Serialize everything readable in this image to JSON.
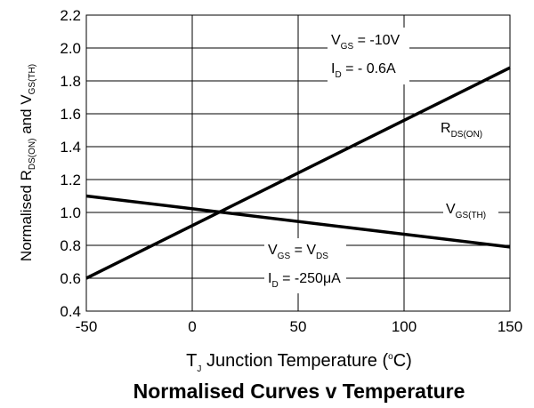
{
  "chart_data": {
    "type": "line",
    "title": "Normalised Curves v Temperature",
    "xlabel": {
      "main": "T",
      "sub": "J",
      "rest": " Junction Temperature (",
      "sup": "o",
      "end": "C)"
    },
    "ylabel": {
      "p1": "Normalised R",
      "s1": "DS(ON)",
      "p2": " and V",
      "s2": "GS(TH)"
    },
    "xlim": [
      -50,
      150
    ],
    "ylim": [
      0.4,
      2.2
    ],
    "xticks": [
      "-50",
      "0",
      "50",
      "100",
      "150"
    ],
    "yticks": [
      "2.2",
      "2.0",
      "1.8",
      "1.6",
      "1.4",
      "1.2",
      "1.0",
      "0.8",
      "0.6",
      "0.4"
    ],
    "grid": true,
    "series": [
      {
        "name": "RDS(ON)",
        "x": [
          -50,
          150
        ],
        "y": [
          0.6,
          1.88
        ]
      },
      {
        "name": "VGS(TH)",
        "x": [
          -50,
          150
        ],
        "y": [
          1.1,
          0.79
        ]
      }
    ],
    "annotations": {
      "top": {
        "l1a": "V",
        "l1s": "GS",
        "l1b": " = -10V",
        "l2a": "I",
        "l2s": "D",
        "l2b": " = - 0.6A"
      },
      "rds": {
        "a": "R",
        "s": "DS(ON)"
      },
      "vgs": {
        "a": "V",
        "s": "GS(TH)"
      },
      "bottom": {
        "l1a": "V",
        "l1s": "GS",
        "l1b": " = V",
        "l1s2": "DS",
        "l2a": "I",
        "l2s": "D",
        "l2b": " = -250",
        "l2mu": "μ",
        "l2c": "A"
      }
    }
  }
}
